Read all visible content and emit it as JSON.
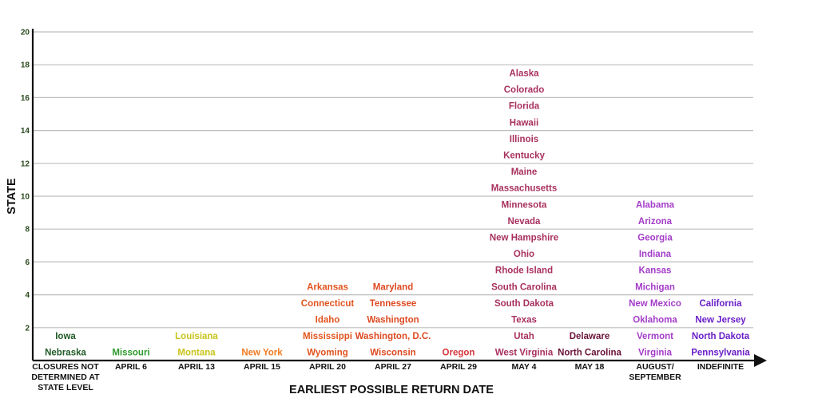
{
  "chart_data": {
    "type": "table",
    "xlabel": "EARLIEST POSSIBLE RETURN DATE",
    "ylabel": "STATE",
    "ylim": [
      0,
      20
    ],
    "yticks": [
      2,
      4,
      6,
      8,
      10,
      12,
      14,
      16,
      18,
      20
    ],
    "grid": true,
    "categories": [
      "CLOSURES NOT DETERMINED AT STATE LEVEL",
      "APRIL 6",
      "APRIL 13",
      "APRIL 15",
      "APRIL 20",
      "APRIL 27",
      "APRIL 29",
      "MAY 4",
      "MAY 18",
      "AUGUST/ SEPTEMBER",
      "INDEFINITE"
    ],
    "category_lines": [
      [
        "CLOSURES NOT",
        "DETERMINED AT",
        "STATE LEVEL"
      ],
      [
        "APRIL 6"
      ],
      [
        "APRIL 13"
      ],
      [
        "APRIL 15"
      ],
      [
        "APRIL 20"
      ],
      [
        "APRIL 27"
      ],
      [
        "APRIL 29"
      ],
      [
        "MAY 4"
      ],
      [
        "MAY 18"
      ],
      [
        "AUGUST/",
        "SEPTEMBER"
      ],
      [
        "INDEFINITE"
      ]
    ],
    "series": [
      {
        "color": "#1f5a26",
        "states": [
          "Nebraska",
          "Iowa"
        ]
      },
      {
        "color": "#2e9a2e",
        "states": [
          "Missouri"
        ]
      },
      {
        "color": "#c9c41c",
        "states": [
          "Montana",
          "Louisiana"
        ]
      },
      {
        "color": "#f07a22",
        "states": [
          "New York"
        ]
      },
      {
        "color": "#e2541f",
        "states": [
          "Wyoming",
          "Mississippi",
          "Idaho",
          "Connecticut",
          "Arkansas"
        ]
      },
      {
        "color": "#dd4a22",
        "states": [
          "Wisconsin",
          "Washington, D.C.",
          "Washington",
          "Tennessee",
          "Maryland"
        ]
      },
      {
        "color": "#d6353d",
        "states": [
          "Oregon"
        ]
      },
      {
        "color": "#a8315e",
        "states": [
          "West Virginia",
          "Utah",
          "Texas",
          "South Dakota",
          "South Carolina",
          "Rhode Island",
          "Ohio",
          "New Hampshire",
          "Nevada",
          "Minnesota",
          "Massachusetts",
          "Maine",
          "Kentucky",
          "Illinois",
          "Hawaii",
          "Florida",
          "Colorado",
          "Alaska"
        ]
      },
      {
        "color": "#6b1437",
        "states": [
          "North Carolina",
          "Delaware"
        ]
      },
      {
        "color": "#a43dc9",
        "states": [
          "Virginia",
          "Vermont",
          "Oklahoma",
          "New Mexico",
          "Michigan",
          "Kansas",
          "Indiana",
          "Georgia",
          "Arizona",
          "Alabama"
        ]
      },
      {
        "color": "#6a20c8",
        "states": [
          "Pennsylvania",
          "North Dakota",
          "New Jersey",
          "California"
        ]
      }
    ]
  }
}
